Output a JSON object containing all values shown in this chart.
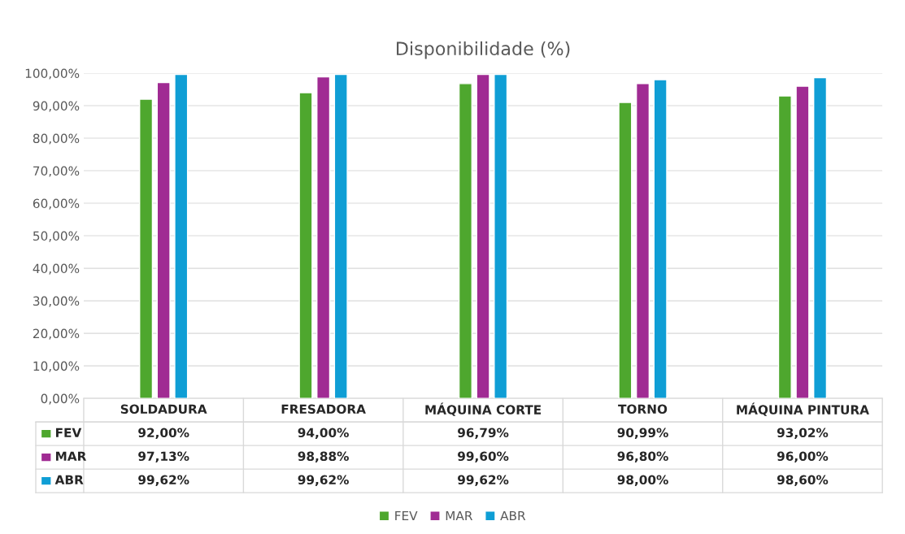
{
  "chart_data": {
    "type": "bar",
    "title": "Disponibilidade (%)",
    "categories": [
      "SOLDADURA",
      "FRESADORA",
      "MÁQUINA CORTE",
      "TORNO",
      "MÁQUINA PINTURA"
    ],
    "series": [
      {
        "name": "FEV",
        "color": "#4ea72e",
        "values": [
          92.0,
          94.0,
          96.79,
          90.99,
          93.02
        ],
        "value_labels": [
          "92,00%",
          "94,00%",
          "96,79%",
          "90,99%",
          "93,02%"
        ]
      },
      {
        "name": "MAR",
        "color": "#a02b93",
        "values": [
          97.13,
          98.88,
          99.6,
          96.8,
          96.0
        ],
        "value_labels": [
          "97,13%",
          "98,88%",
          "99,60%",
          "96,80%",
          "96,00%"
        ]
      },
      {
        "name": "ABR",
        "color": "#0f9ed5",
        "values": [
          99.62,
          99.62,
          99.62,
          98.0,
          98.6
        ],
        "value_labels": [
          "99,62%",
          "99,62%",
          "99,62%",
          "98,00%",
          "98,60%"
        ]
      }
    ],
    "ylim": [
      0,
      100
    ],
    "yticks": [
      {
        "value": 0,
        "label": "0,00%"
      },
      {
        "value": 10,
        "label": "10,00%"
      },
      {
        "value": 20,
        "label": "20,00%"
      },
      {
        "value": 30,
        "label": "30,00%"
      },
      {
        "value": 40,
        "label": "40,00%"
      },
      {
        "value": 50,
        "label": "50,00%"
      },
      {
        "value": 60,
        "label": "60,00%"
      },
      {
        "value": 70,
        "label": "70,00%"
      },
      {
        "value": 80,
        "label": "80,00%"
      },
      {
        "value": 90,
        "label": "90,00%"
      },
      {
        "value": 100,
        "label": "100,00%"
      }
    ],
    "grid": "y",
    "legend": "bottom"
  }
}
